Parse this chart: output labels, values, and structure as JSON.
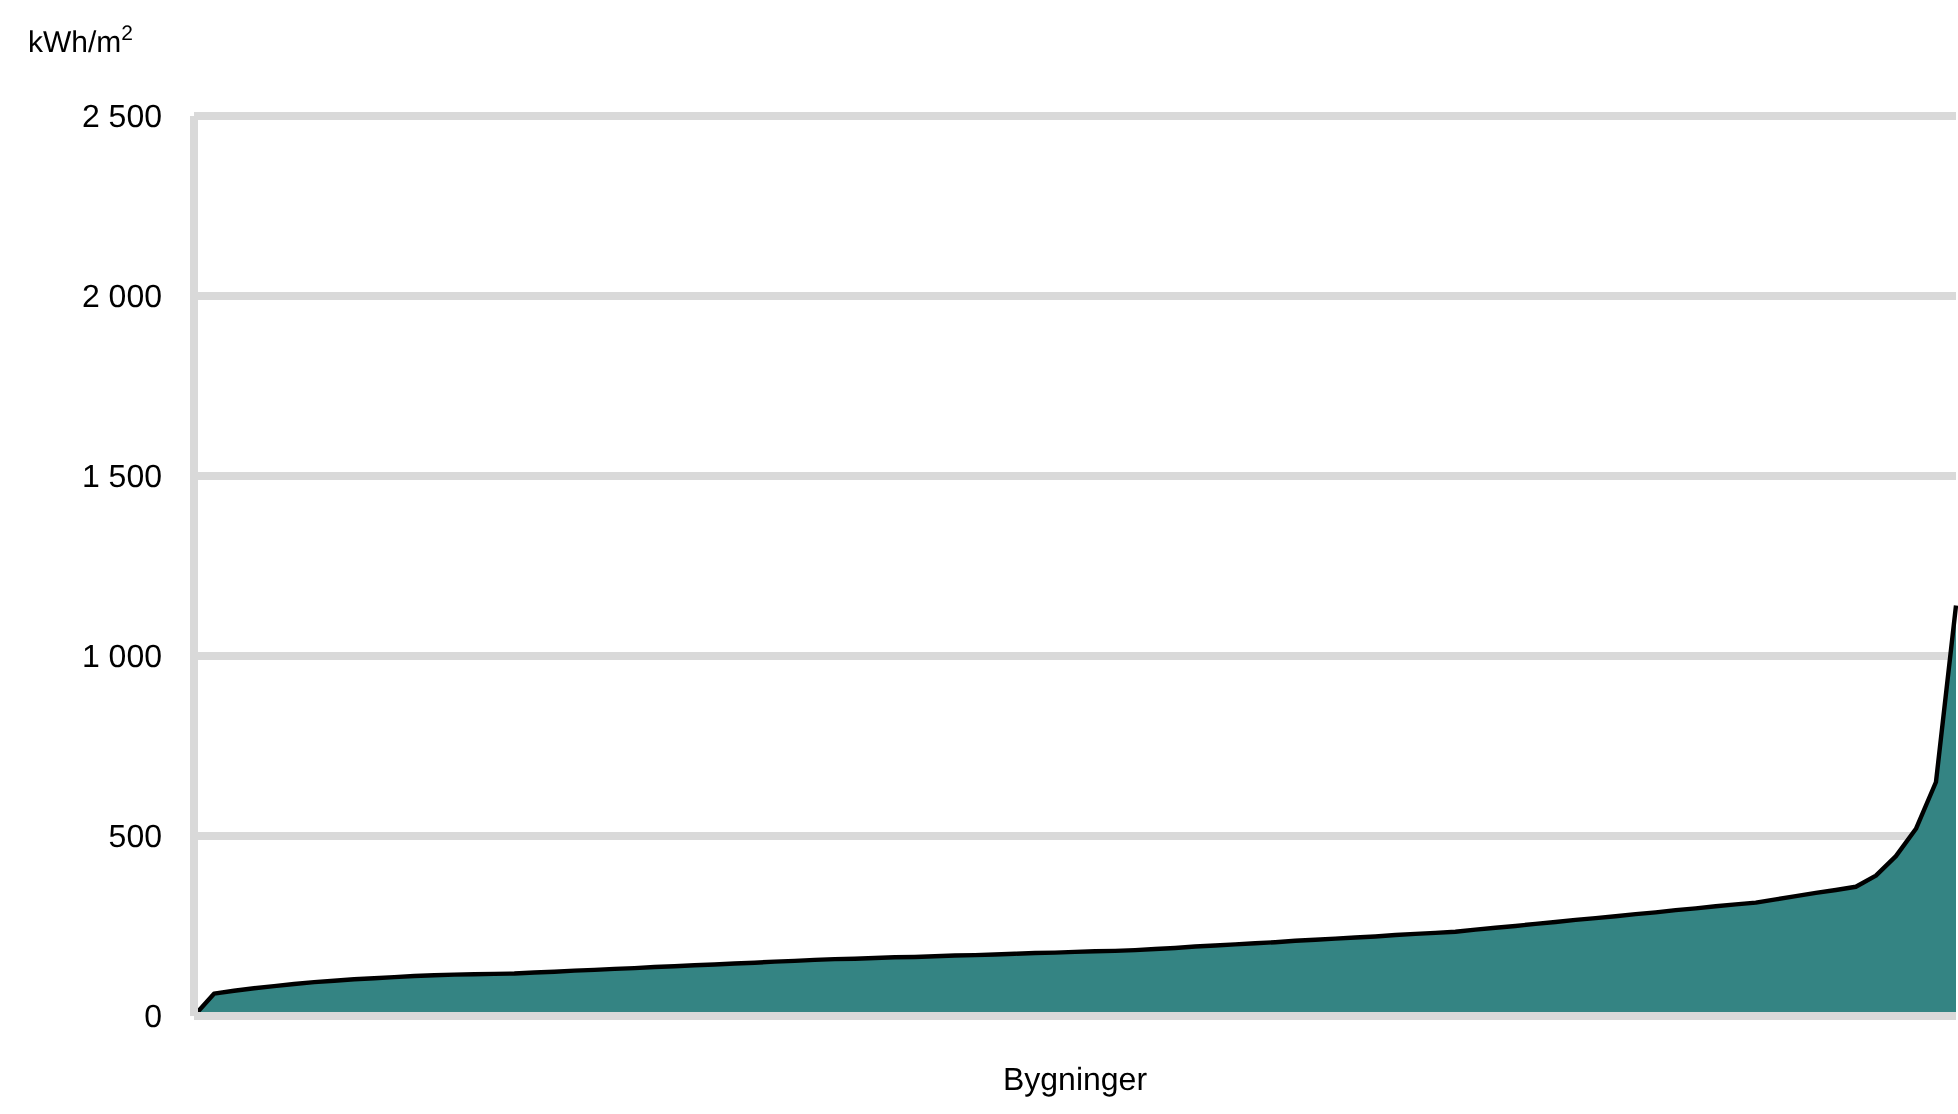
{
  "chart_data": {
    "type": "area",
    "xlabel": "Bygninger",
    "ylabel": "kWh/m$^{2}$",
    "categories": [
      null,
      null,
      null,
      null,
      null,
      null,
      null,
      null,
      null,
      null,
      null,
      null,
      null,
      null,
      null,
      null,
      null,
      null,
      null,
      null,
      null,
      null,
      null,
      null,
      null,
      null,
      null,
      null,
      null,
      null,
      null,
      null,
      null,
      null,
      null,
      null,
      null,
      null,
      null,
      null,
      null,
      null,
      null,
      null,
      null,
      null,
      null,
      null,
      null,
      null,
      null,
      null,
      null,
      null,
      null,
      null,
      null,
      null,
      null,
      null,
      null,
      null,
      null,
      null,
      null,
      null,
      null,
      null,
      null,
      null,
      null,
      null,
      null,
      null,
      null,
      null,
      null,
      null,
      null,
      null,
      null,
      null,
      null,
      null,
      null,
      null,
      null,
      null,
      null
    ],
    "series": [
      {
        "color": "#348483",
        "values": [
          0,
          62,
          70,
          77,
          83,
          89,
          94,
          98,
          102,
          105,
          108,
          111,
          113,
          115,
          116,
          117,
          118,
          121,
          123,
          126,
          128,
          131,
          133,
          136,
          138,
          141,
          143,
          146,
          148,
          151,
          153,
          156,
          158,
          159,
          161,
          163,
          164,
          166,
          168,
          169,
          171,
          173,
          175,
          176,
          178,
          180,
          181,
          183,
          186,
          189,
          193,
          196,
          199,
          202,
          205,
          209,
          212,
          215,
          218,
          221,
          225,
          228,
          231,
          234,
          240,
          245,
          250,
          256,
          261,
          267,
          272,
          277,
          283,
          288,
          294,
          299,
          305,
          310,
          315,
          324,
          333,
          342,
          350,
          359,
          390,
          444,
          520,
          650,
          1140
        ]
      }
    ],
    "ylim": [
      0,
      2500
    ],
    "yticks": [
      0,
      500,
      {
        "value": 1000,
        "label": "1 000"
      },
      {
        "value": 1500,
        "label": "1 500"
      },
      {
        "value": 2000,
        "label": "2 000"
      },
      {
        "value": 2500,
        "label": "2 500"
      }
    ],
    "grid": "y",
    "tick_labels": "y",
    "line_style": "solid",
    "marker": "none"
  }
}
